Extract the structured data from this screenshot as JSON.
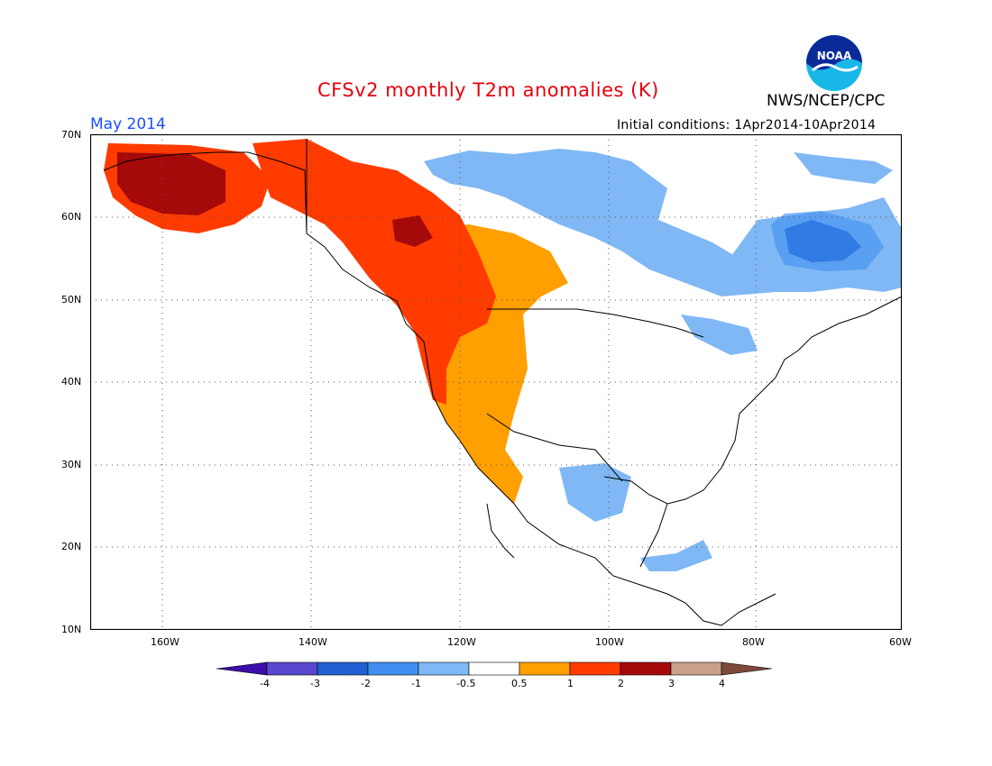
{
  "header": {
    "title": "CFSv2 monthly T2m anomalies (K)",
    "period": "May 2014",
    "initial_conditions": "Initial conditions: 1Apr2014-10Apr2014",
    "agency": "NWS/NCEP/CPC",
    "logo_text": "NOAA"
  },
  "axes": {
    "lat_labels": [
      "70N",
      "60N",
      "50N",
      "40N",
      "30N",
      "20N",
      "10N"
    ],
    "lon_labels": [
      "160W",
      "140W",
      "120W",
      "100W",
      "80W",
      "60W"
    ]
  },
  "colorbar": {
    "labels": [
      "-4",
      "-3",
      "-2",
      "-1",
      "-0.5",
      "0.5",
      "1",
      "2",
      "3",
      "4"
    ],
    "colors": [
      "#3a0ea8",
      "#5848cf",
      "#1f5fd1",
      "#3f8ef0",
      "#7fb8f5",
      "#ffffff",
      "#ff9f00",
      "#ff3b00",
      "#a50a0a",
      "#c8a08c",
      "#7d4a3a"
    ]
  },
  "anomaly_colors": {
    "neg1": "#7fb8f5",
    "neg2": "#3f8ef0",
    "neg3": "#1f5fd1",
    "pos1": "#ff9f00",
    "pos2": "#ff3b00",
    "pos3": "#a50a0a"
  }
}
